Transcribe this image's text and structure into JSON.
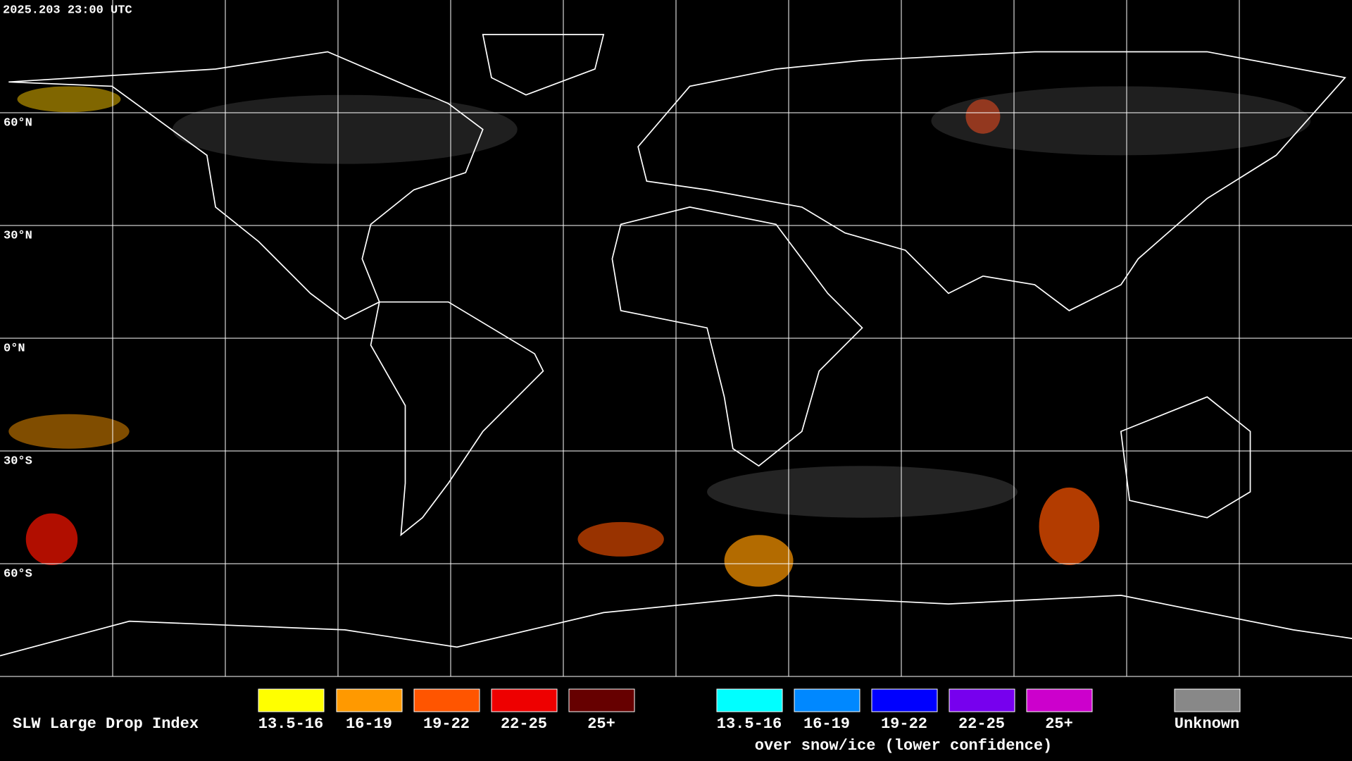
{
  "header": {
    "timestamp": "2025.203 23:00 UTC"
  },
  "grid": {
    "lat_labels": [
      "60°N",
      "30°N",
      "0°N",
      "30°S",
      "60°S"
    ]
  },
  "legend": {
    "title": "SLW Large Drop Index",
    "items": [
      {
        "label": "13.5-16",
        "color": "#ffff00"
      },
      {
        "label": "16-19",
        "color": "#ff9900"
      },
      {
        "label": "19-22",
        "color": "#ff5500"
      },
      {
        "label": "22-25",
        "color": "#ee0000"
      },
      {
        "label": "25+",
        "color": "#660000"
      }
    ],
    "snow_items": [
      {
        "label": "13.5-16",
        "color": "#00ffff"
      },
      {
        "label": "16-19",
        "color": "#0088ff"
      },
      {
        "label": "19-22",
        "color": "#0000ff"
      },
      {
        "label": "22-25",
        "color": "#7700ee"
      },
      {
        "label": "25+",
        "color": "#cc00cc"
      }
    ],
    "snow_note": "over snow/ice (lower confidence)",
    "unknown": {
      "label": "Unknown",
      "color": "#888888"
    }
  }
}
